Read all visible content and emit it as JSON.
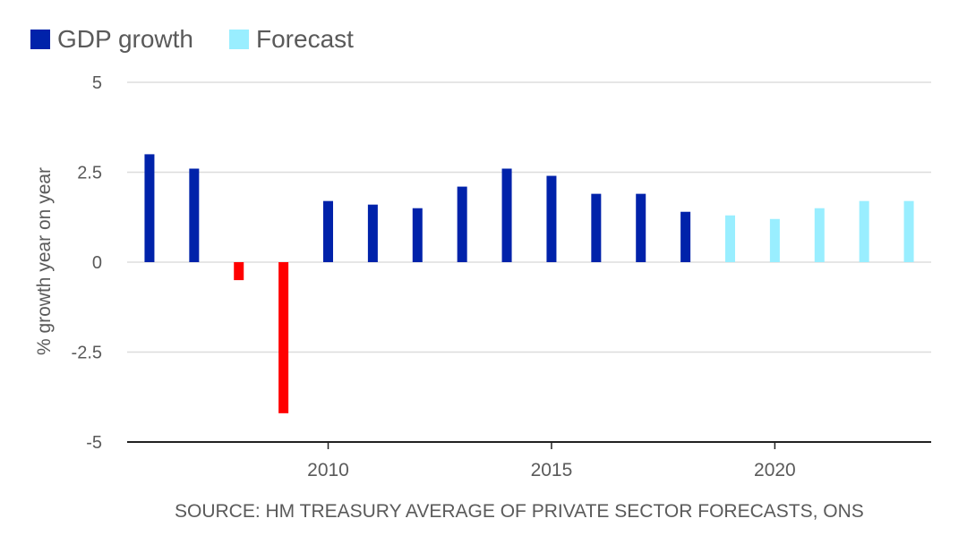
{
  "legend": {
    "items": [
      {
        "label": "GDP growth",
        "color": "#0022aa"
      },
      {
        "label": "Forecast",
        "color": "#99eeff"
      }
    ]
  },
  "source": "SOURCE: HM TREASURY AVERAGE OF PRIVATE SECTOR FORECASTS, ONS",
  "chart_data": {
    "type": "bar",
    "title": "",
    "xlabel": "",
    "ylabel": "% growth year on year",
    "ylim": [
      -5,
      5
    ],
    "yticks": [
      5,
      2.5,
      0,
      -2.5,
      -5
    ],
    "ytick_labels": [
      "5",
      "2.5",
      "0",
      "-2.5",
      "-5"
    ],
    "xlim": [
      2005.5,
      2023.5
    ],
    "xticks": [
      2010,
      2015,
      2020
    ],
    "xtick_labels": [
      "2010",
      "2015",
      "2020"
    ],
    "grid": true,
    "legend_position": "top-left",
    "colors": {
      "actual": "#0022aa",
      "negative": "#ff0000",
      "forecast": "#99eeff"
    },
    "series": [
      {
        "name": "GDP growth",
        "x": [
          2006,
          2007,
          2008,
          2009,
          2010,
          2011,
          2012,
          2013,
          2014,
          2015,
          2016,
          2017,
          2018
        ],
        "values": [
          3.0,
          2.6,
          -0.5,
          -4.2,
          1.7,
          1.6,
          1.5,
          2.1,
          2.6,
          2.4,
          1.9,
          1.9,
          1.4
        ]
      },
      {
        "name": "Forecast",
        "x": [
          2019,
          2020,
          2021,
          2022,
          2023
        ],
        "values": [
          1.3,
          1.2,
          1.5,
          1.7,
          1.7
        ]
      }
    ]
  }
}
